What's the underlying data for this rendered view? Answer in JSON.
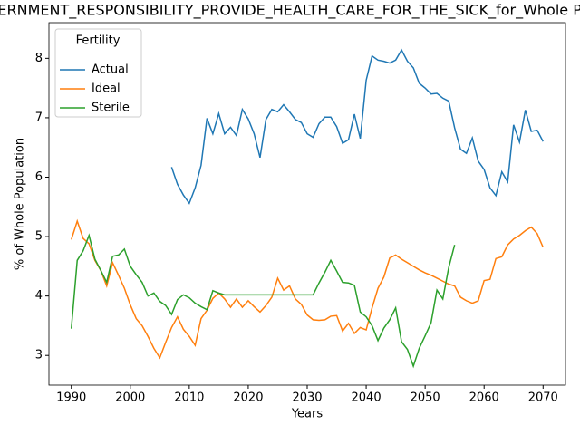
{
  "chart_data": {
    "type": "line",
    "title": "GOVERNMENT_RESPONSIBILITY_PROVIDE_HEALTH_CARE_FOR_THE_SICK_for_Whole Population",
    "xlabel": "Years",
    "ylabel": "% of Whole Population",
    "legend_title": "Fertility",
    "legend": "upper left",
    "grid": false,
    "xlim": [
      1986.2,
      2073.8
    ],
    "ylim": [
      2.5,
      8.6
    ],
    "xticks": [
      1990,
      2000,
      2010,
      2020,
      2030,
      2040,
      2050,
      2060,
      2070
    ],
    "yticks": [
      3,
      4,
      5,
      6,
      7,
      8
    ],
    "x": [
      1990,
      1991,
      1992,
      1993,
      1994,
      1995,
      1996,
      1997,
      1998,
      1999,
      2000,
      2001,
      2002,
      2003,
      2004,
      2005,
      2006,
      2007,
      2008,
      2009,
      2010,
      2011,
      2012,
      2013,
      2014,
      2015,
      2016,
      2017,
      2018,
      2019,
      2020,
      2021,
      2022,
      2023,
      2024,
      2025,
      2026,
      2027,
      2028,
      2029,
      2030,
      2031,
      2032,
      2033,
      2034,
      2035,
      2036,
      2037,
      2038,
      2039,
      2040,
      2041,
      2042,
      2043,
      2044,
      2045,
      2046,
      2047,
      2048,
      2049,
      2050,
      2051,
      2052,
      2053,
      2054,
      2055,
      2056,
      2057,
      2058,
      2059,
      2060,
      2061,
      2062,
      2063,
      2064,
      2065,
      2066,
      2067,
      2068,
      2069,
      2070
    ],
    "series": [
      {
        "name": "Actual",
        "color": "#1f77b4",
        "values": [
          null,
          null,
          null,
          null,
          null,
          null,
          null,
          null,
          null,
          null,
          null,
          null,
          null,
          null,
          null,
          null,
          null,
          6.17,
          5.88,
          5.7,
          5.56,
          5.82,
          6.2,
          6.99,
          6.73,
          7.07,
          6.73,
          6.84,
          6.7,
          7.14,
          6.98,
          6.73,
          6.33,
          6.97,
          7.14,
          7.1,
          7.22,
          7.1,
          6.97,
          6.92,
          6.73,
          6.67,
          6.9,
          7.01,
          7.01,
          6.85,
          6.57,
          6.63,
          7.06,
          6.65,
          7.63,
          8.04,
          7.97,
          7.95,
          7.92,
          7.97,
          8.14,
          7.95,
          7.84,
          7.58,
          7.5,
          7.4,
          7.41,
          7.33,
          7.28,
          6.83,
          6.47,
          6.4,
          6.66,
          6.27,
          6.13,
          5.82,
          5.69,
          6.09,
          5.92,
          6.88,
          6.59,
          7.13,
          6.77,
          6.79,
          6.6
        ]
      },
      {
        "name": "Ideal",
        "color": "#ff7f0e",
        "values": [
          4.95,
          5.26,
          4.97,
          4.88,
          4.6,
          4.43,
          4.17,
          4.56,
          4.35,
          4.13,
          3.85,
          3.62,
          3.5,
          3.32,
          3.12,
          2.96,
          3.22,
          3.47,
          3.65,
          3.44,
          3.32,
          3.17,
          3.62,
          3.76,
          3.96,
          4.05,
          3.95,
          3.81,
          3.95,
          3.81,
          3.92,
          3.82,
          3.73,
          3.84,
          3.98,
          4.3,
          4.1,
          4.17,
          3.95,
          3.86,
          3.68,
          3.6,
          3.59,
          3.6,
          3.66,
          3.67,
          3.41,
          3.54,
          3.37,
          3.47,
          3.43,
          3.8,
          4.13,
          4.32,
          4.64,
          4.69,
          4.62,
          4.56,
          4.5,
          4.44,
          4.39,
          4.35,
          4.3,
          4.25,
          4.2,
          4.17,
          3.98,
          3.92,
          3.88,
          3.92,
          4.26,
          4.28,
          4.63,
          4.66,
          4.86,
          4.96,
          5.02,
          5.1,
          5.16,
          5.05,
          4.82
        ]
      },
      {
        "name": "Sterile",
        "color": "#2ca02c",
        "values": [
          3.45,
          4.6,
          4.76,
          5.02,
          4.62,
          4.43,
          4.23,
          4.67,
          4.69,
          4.79,
          4.5,
          4.36,
          4.23,
          4.0,
          4.05,
          3.91,
          3.84,
          3.69,
          3.94,
          4.02,
          3.97,
          3.88,
          3.82,
          3.77,
          4.09,
          4.05,
          4.02,
          4.02,
          4.02,
          4.02,
          4.02,
          4.02,
          4.02,
          4.02,
          4.02,
          4.02,
          4.02,
          4.02,
          4.02,
          4.02,
          4.02,
          4.02,
          4.22,
          4.4,
          4.6,
          4.42,
          4.23,
          4.22,
          4.18,
          3.73,
          3.65,
          3.5,
          3.25,
          3.46,
          3.6,
          3.8,
          3.23,
          3.1,
          2.82,
          3.12,
          3.33,
          3.55,
          4.1,
          3.95,
          4.48,
          4.86,
          null,
          null,
          null,
          null,
          null,
          null,
          null,
          null,
          null,
          null,
          null,
          null,
          null,
          null,
          null
        ]
      }
    ]
  }
}
